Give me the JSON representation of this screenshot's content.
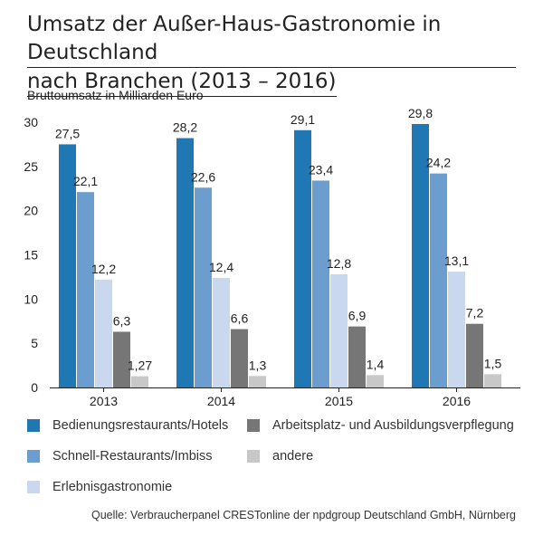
{
  "title_line1": "Umsatz der Außer-Haus-Gastronomie in Deutschland",
  "title_line2": "nach Branchen (2013 – 2016)",
  "source": "Quelle: Verbraucherpanel CRESTonline der npdgroup Deutschland GmbH, Nürnberg",
  "chart_data": {
    "type": "bar",
    "ylabel": "Bruttoumsatz in Milliarden Euro",
    "categories": [
      "2013",
      "2014",
      "2015",
      "2016"
    ],
    "ylim": [
      0,
      30
    ],
    "yticks": [
      "0",
      "5",
      "10",
      "15",
      "20",
      "25",
      "30"
    ],
    "grid": false,
    "legend_position": "bottom",
    "series": [
      {
        "name": "Bedienungsrestaurants/Hotels",
        "color": "#1f78b4",
        "values": [
          27.5,
          28.2,
          29.1,
          29.8
        ],
        "labels": [
          "27,5",
          "28,2",
          "29,1",
          "29,8"
        ]
      },
      {
        "name": "Schnell-Restaurants/Imbiss",
        "color": "#6b9ecf",
        "values": [
          22.1,
          22.6,
          23.4,
          24.2
        ],
        "labels": [
          "22,1",
          "22,6",
          "23,4",
          "24,2"
        ]
      },
      {
        "name": "Erlebnisgastronomie",
        "color": "#c9d8ee",
        "values": [
          12.2,
          12.4,
          12.8,
          13.1
        ],
        "labels": [
          "12,2",
          "12,4",
          "12,8",
          "13,1"
        ]
      },
      {
        "name": "Arbeitsplatz- und Ausbildungsverpflegung",
        "color": "#767676",
        "values": [
          6.3,
          6.6,
          6.9,
          7.2
        ],
        "labels": [
          "6,3",
          "6,6",
          "6,9",
          "7,2"
        ]
      },
      {
        "name": "andere",
        "color": "#c8c8c8",
        "values": [
          1.27,
          1.3,
          1.4,
          1.5
        ],
        "labels": [
          "1,27",
          "1,3",
          "1,4",
          "1,5"
        ]
      }
    ]
  }
}
